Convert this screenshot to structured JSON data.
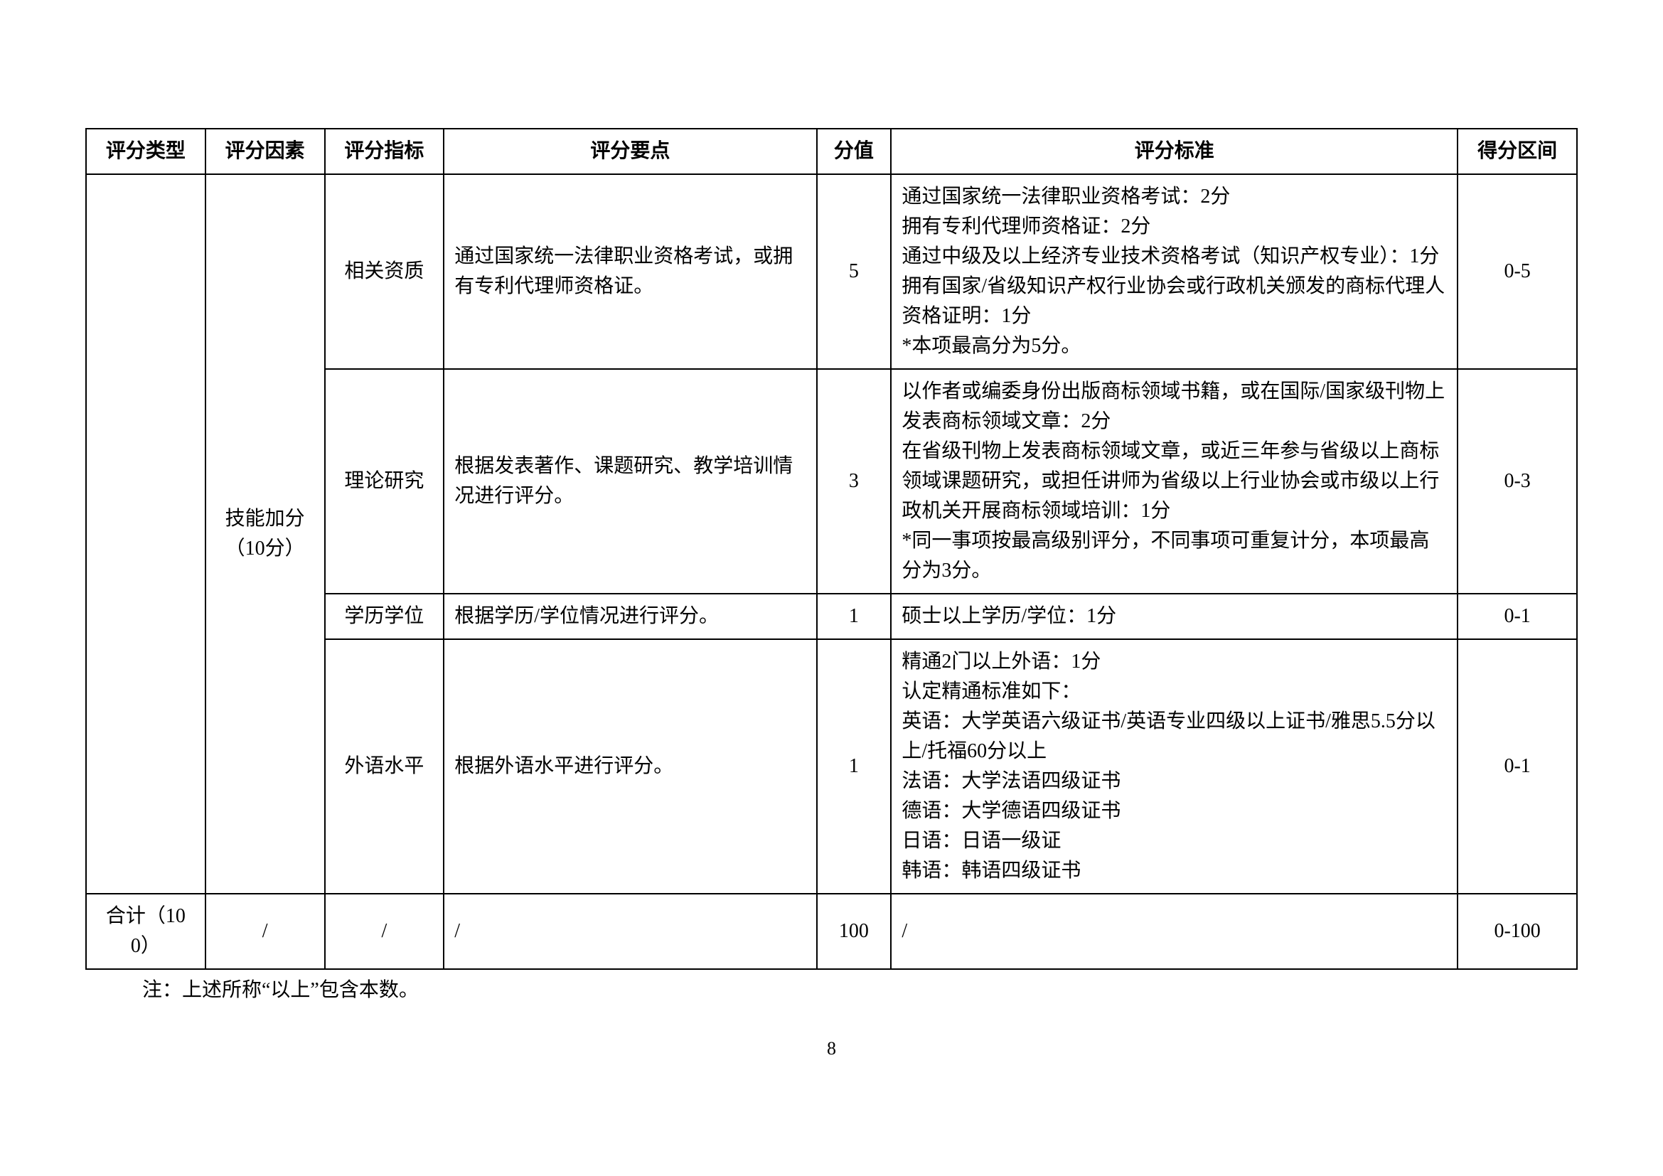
{
  "columns": [
    {
      "label": "评分类型",
      "width": "8%"
    },
    {
      "label": "评分因素",
      "width": "8%"
    },
    {
      "label": "评分指标",
      "width": "8%"
    },
    {
      "label": "评分要点",
      "width": "23%"
    },
    {
      "label": "分值",
      "width": "5%"
    },
    {
      "label": "评分标准",
      "width": "33%"
    },
    {
      "label": "得分区间",
      "width": "8%"
    }
  ],
  "category_factor": "技能加分（10分）",
  "rows": [
    {
      "indicator": "相关资质",
      "keypoint": "通过国家统一法律职业资格考试，或拥有专利代理师资格证。",
      "score": "5",
      "standard": "通过国家统一法律职业资格考试：2分\n拥有专利代理师资格证：2分\n通过中级及以上经济专业技术资格考试（知识产权专业）：1分\n拥有国家/省级知识产权行业协会或行政机关颁发的商标代理人资格证明：1分\n*本项最高分为5分。",
      "range": "0-5"
    },
    {
      "indicator": "理论研究",
      "keypoint": "根据发表著作、课题研究、教学培训情况进行评分。",
      "score": "3",
      "standard": "以作者或编委身份出版商标领域书籍，或在国际/国家级刊物上发表商标领域文章：2分\n在省级刊物上发表商标领域文章，或近三年参与省级以上商标领域课题研究，或担任讲师为省级以上行业协会或市级以上行政机关开展商标领域培训：1分\n*同一事项按最高级别评分，不同事项可重复计分，本项最高分为3分。",
      "range": "0-3"
    },
    {
      "indicator": "学历学位",
      "keypoint": "根据学历/学位情况进行评分。",
      "score": "1",
      "standard": "硕士以上学历/学位：1分",
      "range": "0-1"
    },
    {
      "indicator": "外语水平",
      "keypoint": "根据外语水平进行评分。",
      "score": "1",
      "standard": "精通2门以上外语：1分\n认定精通标准如下：\n英语：大学英语六级证书/英语专业四级以上证书/雅思5.5分以上/托福60分以上\n法语：大学法语四级证书\n德语：大学德语四级证书\n日语：日语一级证\n韩语：韩语四级证书",
      "range": "0-1"
    }
  ],
  "total_row": {
    "type": "合计（100）",
    "factor": "/",
    "indicator": "/",
    "keypoint": "/",
    "score": "100",
    "standard": "/",
    "range": "0-100"
  },
  "footnote": "注：上述所称“以上”包含本数。",
  "page_number": "8"
}
